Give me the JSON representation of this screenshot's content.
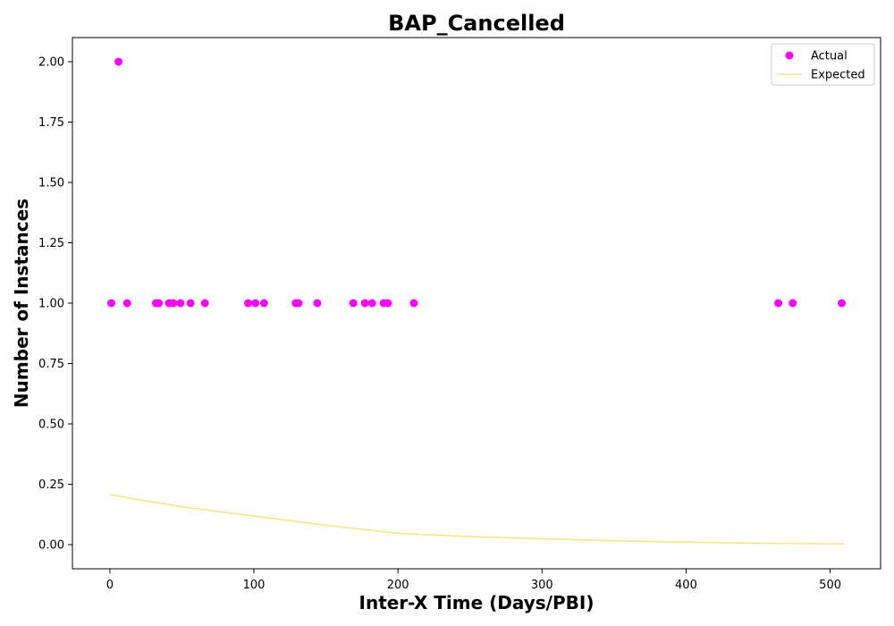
{
  "chart_data": {
    "type": "scatter",
    "title": "BAP_Cancelled",
    "xlabel": "Inter-X Time (Days/PBI)",
    "ylabel": "Number of Instances",
    "xlim": [
      -26,
      535
    ],
    "ylim": [
      -0.1,
      2.1
    ],
    "xticks": [
      0,
      100,
      200,
      300,
      400,
      500
    ],
    "yticks": [
      0.0,
      0.25,
      0.5,
      0.75,
      1.0,
      1.25,
      1.5,
      1.75,
      2.0
    ],
    "xtick_labels": [
      "0",
      "100",
      "200",
      "300",
      "400",
      "500"
    ],
    "ytick_labels": [
      "0.00",
      "0.25",
      "0.50",
      "0.75",
      "1.00",
      "1.25",
      "1.50",
      "1.75",
      "2.00"
    ],
    "grid": false,
    "legend_position": "top-right",
    "series": [
      {
        "name": "Actual",
        "kind": "scatter",
        "color": "#ff00ff",
        "points": [
          [
            1,
            1
          ],
          [
            6,
            2
          ],
          [
            12,
            1
          ],
          [
            32,
            1
          ],
          [
            34,
            1
          ],
          [
            41,
            1
          ],
          [
            44,
            1
          ],
          [
            49,
            1
          ],
          [
            56,
            1
          ],
          [
            66,
            1
          ],
          [
            96,
            1
          ],
          [
            101,
            1
          ],
          [
            107,
            1
          ],
          [
            129,
            1
          ],
          [
            131,
            1
          ],
          [
            144,
            1
          ],
          [
            169,
            1
          ],
          [
            177,
            1
          ],
          [
            182,
            1
          ],
          [
            190,
            1
          ],
          [
            193,
            1
          ],
          [
            211,
            1
          ],
          [
            464,
            1
          ],
          [
            474,
            1
          ],
          [
            508,
            1
          ]
        ]
      },
      {
        "name": "Expected",
        "kind": "line",
        "color": "#f0e68c",
        "points": [
          [
            0,
            0.207
          ],
          [
            25,
            0.181
          ],
          [
            50,
            0.157
          ],
          [
            75,
            0.137
          ],
          [
            100,
            0.119
          ],
          [
            150,
            0.08
          ],
          [
            200,
            0.047
          ],
          [
            250,
            0.033
          ],
          [
            300,
            0.024
          ],
          [
            350,
            0.016
          ],
          [
            400,
            0.01
          ],
          [
            450,
            0.006
          ],
          [
            510,
            0.003
          ]
        ]
      }
    ]
  }
}
